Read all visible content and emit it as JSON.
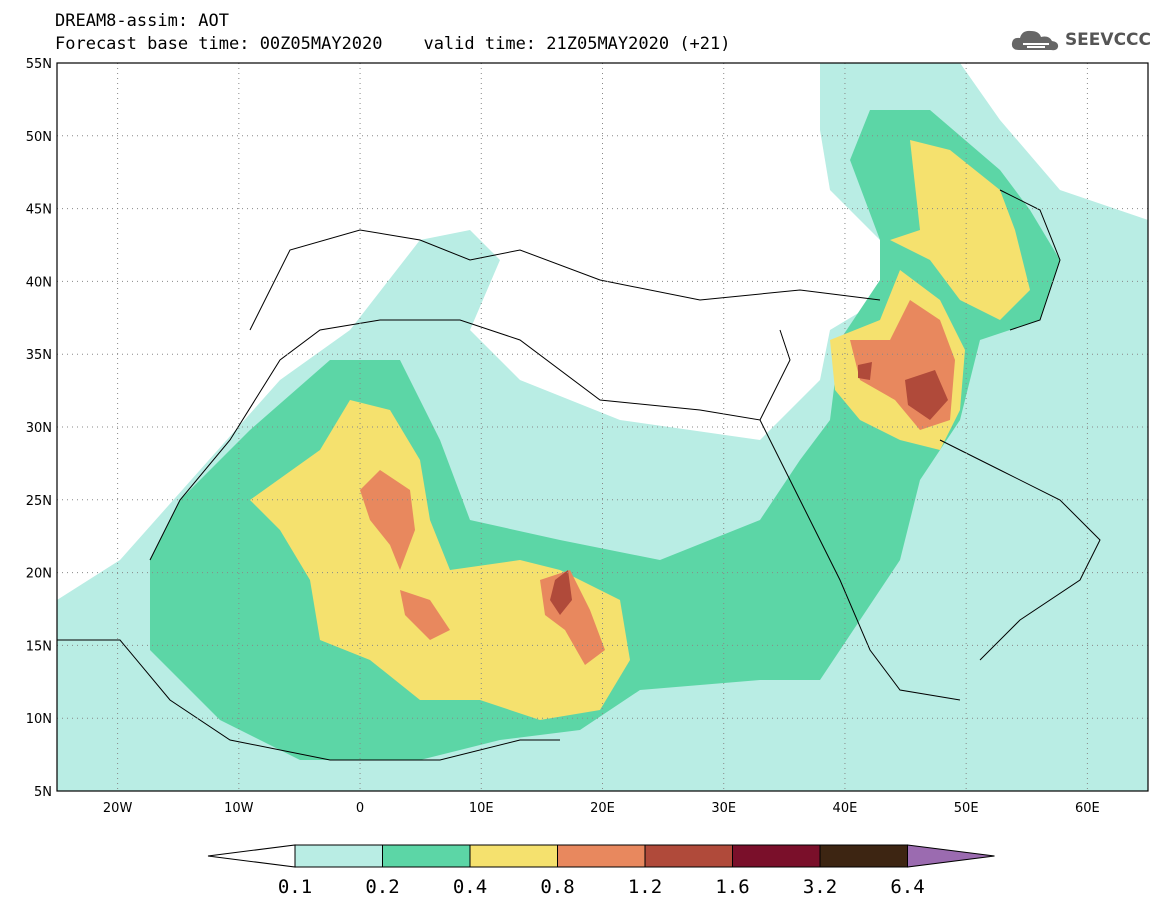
{
  "header": {
    "line1": "DREAM8-assim: AOT",
    "line2": "Forecast base time: 00Z05MAY2020    valid time: 21Z05MAY2020 (+21)"
  },
  "logo": {
    "text": "SEEVCCC",
    "icon": "cloud-icon"
  },
  "map": {
    "lat_labels": [
      "55N",
      "50N",
      "45N",
      "40N",
      "35N",
      "30N",
      "25N",
      "20N",
      "15N",
      "10N",
      "5N"
    ],
    "lon_labels": [
      "20W",
      "10W",
      "0",
      "10E",
      "20E",
      "30E",
      "40E",
      "50E",
      "60E"
    ],
    "lat_range": [
      5,
      55
    ],
    "lon_range": [
      -25,
      65
    ],
    "grid": true
  },
  "colorbar": {
    "labels": [
      "0.1",
      "0.2",
      "0.4",
      "0.8",
      "1.2",
      "1.6",
      "3.2",
      "6.4"
    ],
    "colors": [
      "#ffffff",
      "#b9ede4",
      "#5cd6a6",
      "#f5e16e",
      "#e8885e",
      "#b04a3a",
      "#7a0f2a",
      "#3d2512",
      "#9b6bb0"
    ]
  }
}
